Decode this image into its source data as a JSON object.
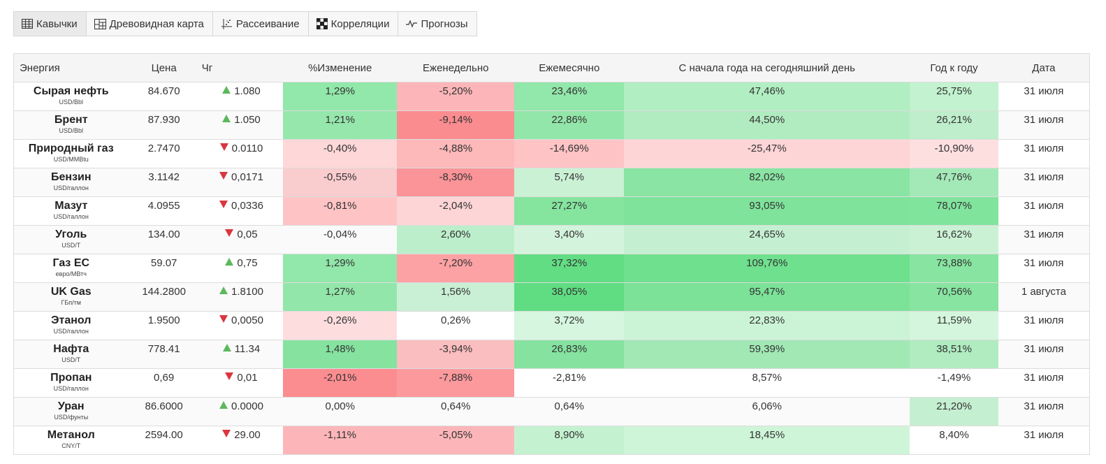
{
  "tabs": [
    {
      "label": "Кавычки",
      "icon": "table-icon",
      "active": true
    },
    {
      "label": "Древовидная карта",
      "icon": "treemap-icon",
      "active": false
    },
    {
      "label": "Рассеивание",
      "icon": "scatter-icon",
      "active": false
    },
    {
      "label": "Корреляции",
      "icon": "correlation-icon",
      "active": false
    },
    {
      "label": "Прогнозы",
      "icon": "forecast-icon",
      "active": false
    }
  ],
  "columns": [
    "Энергия",
    "Цена",
    "Чг",
    "%Изменение",
    "Еженедельно",
    "Ежемесячно",
    "С начала года на сегодняшний день",
    "Год к году",
    "Дата"
  ],
  "rows": [
    {
      "name": "Сырая нефть",
      "unit": "USD/Bbl",
      "price": "84.670",
      "dir": "up",
      "chg": "1.080",
      "pct": "1,29%",
      "weekly": "-5,20%",
      "monthly": "23,46%",
      "ytd": "47,46%",
      "yoy": "25,75%",
      "date": "31 июля"
    },
    {
      "name": "Брент",
      "unit": "USD/Bbl",
      "price": "87.930",
      "dir": "up",
      "chg": "1.050",
      "pct": "1,21%",
      "weekly": "-9,14%",
      "monthly": "22,86%",
      "ytd": "44,50%",
      "yoy": "26,21%",
      "date": "31 июля"
    },
    {
      "name": "Природный газ",
      "unit": "USD/MMBtu",
      "price": "2.7470",
      "dir": "down",
      "chg": "0.0110",
      "pct": "-0,40%",
      "weekly": "-4,88%",
      "monthly": "-14,69%",
      "ytd": "-25,47%",
      "yoy": "-10,90%",
      "date": "31 июля"
    },
    {
      "name": "Бензин",
      "unit": "USD/галлон",
      "price": "3.1142",
      "dir": "down",
      "chg": "0,0171",
      "pct": "-0,55%",
      "weekly": "-8,30%",
      "monthly": "5,74%",
      "ytd": "82,02%",
      "yoy": "47,76%",
      "date": "31 июля"
    },
    {
      "name": "Мазут",
      "unit": "USD/галлон",
      "price": "4.0955",
      "dir": "down",
      "chg": "0,0336",
      "pct": "-0,81%",
      "weekly": "-2,04%",
      "monthly": "27,27%",
      "ytd": "93,05%",
      "yoy": "78,07%",
      "date": "31 июля"
    },
    {
      "name": "Уголь",
      "unit": "USD/T",
      "price": "134.00",
      "dir": "down",
      "chg": "0,05",
      "pct": "-0,04%",
      "weekly": "2,60%",
      "monthly": "3,40%",
      "ytd": "24,65%",
      "yoy": "16,62%",
      "date": "31 июля"
    },
    {
      "name": "Газ ЕС",
      "unit": "евро/МВтч",
      "price": "59.07",
      "dir": "up",
      "chg": "0,75",
      "pct": "1,29%",
      "weekly": "-7,20%",
      "monthly": "37,32%",
      "ytd": "109,76%",
      "yoy": "73,88%",
      "date": "31 июля"
    },
    {
      "name": "UK Gas",
      "unit": "ГБп/тм",
      "price": "144.2800",
      "dir": "up",
      "chg": "1.8100",
      "pct": "1,27%",
      "weekly": "1,56%",
      "monthly": "38,05%",
      "ytd": "95,47%",
      "yoy": "70,56%",
      "date": "1 августа"
    },
    {
      "name": "Этанол",
      "unit": "USD/галлон",
      "price": "1.9500",
      "dir": "down",
      "chg": "0,0050",
      "pct": "-0,26%",
      "weekly": "0,26%",
      "monthly": "3,72%",
      "ytd": "22,83%",
      "yoy": "11,59%",
      "date": "31 июля"
    },
    {
      "name": "Нафта",
      "unit": "USD/T",
      "price": "778.41",
      "dir": "up",
      "chg": "11.34",
      "pct": "1,48%",
      "weekly": "-3,94%",
      "monthly": "26,83%",
      "ytd": "59,39%",
      "yoy": "38,51%",
      "date": "31 июля"
    },
    {
      "name": "Пропан",
      "unit": "USD/галлон",
      "price": "0,69",
      "dir": "down",
      "chg": "0,01",
      "pct": "-2,01%",
      "weekly": "-7,88%",
      "monthly": "-2,81%",
      "ytd": "8,57%",
      "yoy": "-1,49%",
      "date": "31 июля"
    },
    {
      "name": "Уран",
      "unit": "USD/фунты",
      "price": "86.6000",
      "dir": "up",
      "chg": "0.0000",
      "pct": "0,00%",
      "weekly": "0,64%",
      "monthly": "0,64%",
      "ytd": "6,06%",
      "yoy": "21,20%",
      "date": "31 июля"
    },
    {
      "name": "Метанол",
      "unit": "CNY/T",
      "price": "2594.00",
      "dir": "down",
      "chg": "29.00",
      "pct": "-1,11%",
      "weekly": "-5,05%",
      "monthly": "8,90%",
      "ytd": "18,45%",
      "yoy": "8,40%",
      "date": "31 июля"
    }
  ]
}
